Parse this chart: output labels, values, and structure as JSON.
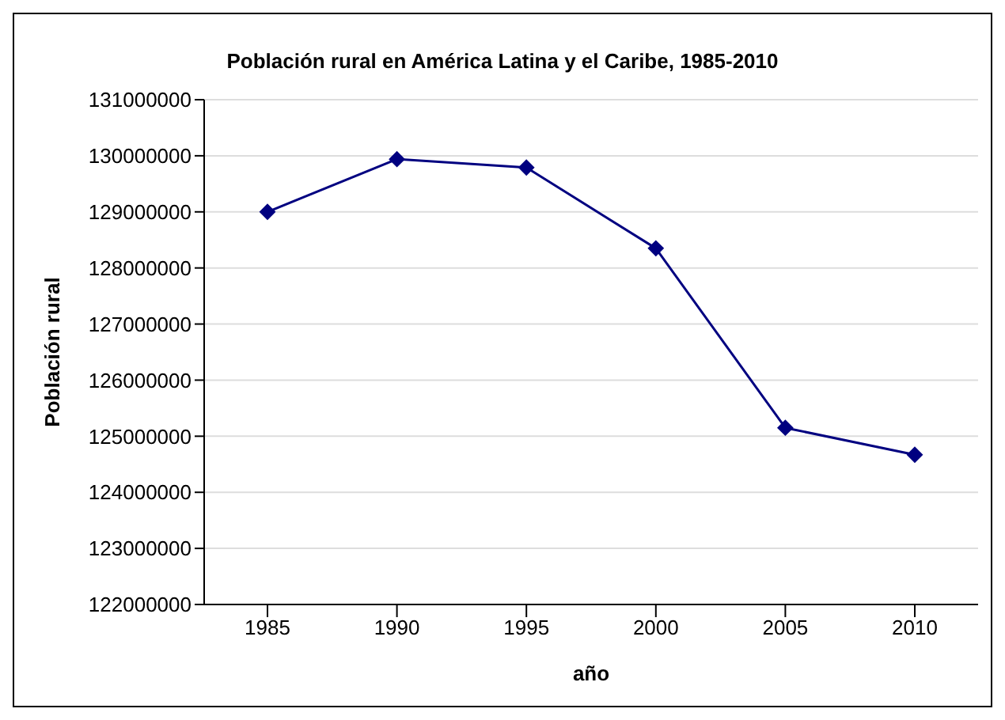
{
  "chart_data": {
    "type": "line",
    "title": "Población rural en América Latina y el Caribe, 1985-2010",
    "xlabel": "año",
    "ylabel": "Población rural",
    "categories": [
      "1985",
      "1990",
      "1995",
      "2000",
      "2005",
      "2010"
    ],
    "series": [
      {
        "color": "#000080",
        "values": [
          129000000,
          129940000,
          129790000,
          128350000,
          125150000,
          124670000
        ]
      }
    ],
    "ylim": [
      122000000,
      131000000
    ],
    "yticks": [
      122000000,
      123000000,
      124000000,
      125000000,
      126000000,
      127000000,
      128000000,
      129000000,
      130000000,
      131000000
    ],
    "grid": "y",
    "marker": "diamond",
    "legend": false
  }
}
